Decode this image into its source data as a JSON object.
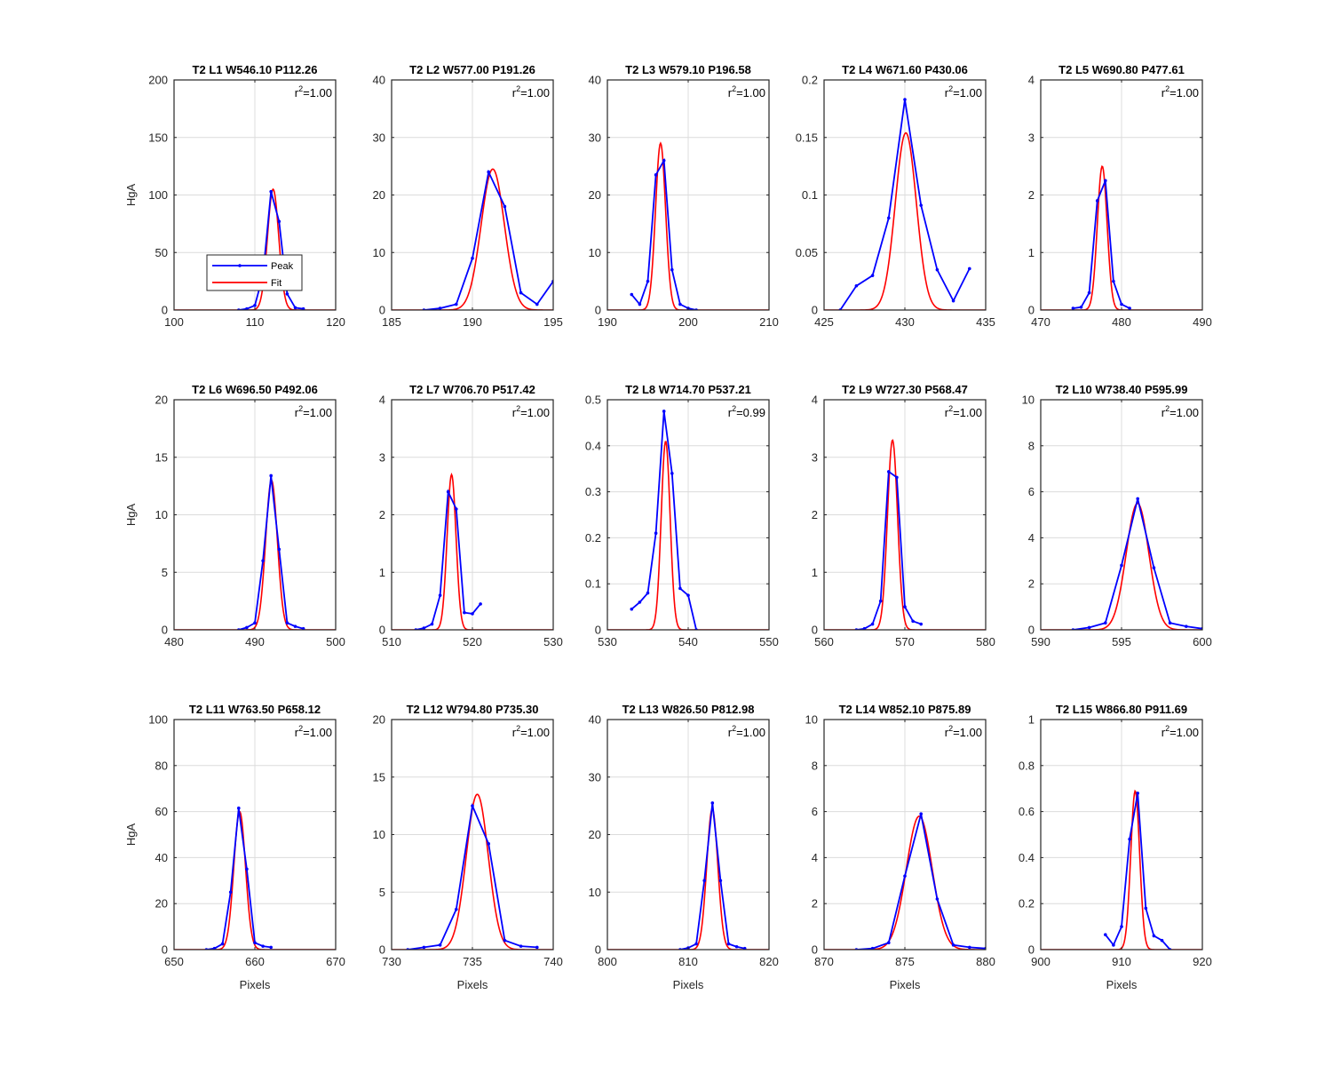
{
  "colors": {
    "peak": "#0000ff",
    "fit": "#ff0000",
    "grid": "#dcdcdc",
    "axis": "#262626"
  },
  "legend": {
    "entries": [
      "Peak",
      "Fit"
    ],
    "placement": "inside-lower-left of first panel"
  },
  "chart_data": [
    {
      "type": "line",
      "title": "T2 L1 W546.10 P112.26",
      "r2": "1.00",
      "center": 112.26,
      "xlim": [
        100,
        120
      ],
      "ylim": [
        0,
        200
      ],
      "xticks": [
        100,
        110,
        120
      ],
      "yticks": [
        0,
        50,
        100,
        150,
        200
      ],
      "ylabel": "HgA",
      "xlabel": "",
      "legend": true,
      "series": [
        {
          "name": "Peak",
          "x": [
            108,
            109,
            110,
            111,
            112,
            113,
            114,
            115,
            116
          ],
          "y": [
            0,
            1,
            4,
            30,
            103,
            77,
            14,
            2,
            1
          ]
        },
        {
          "name": "Fit",
          "amp": 105,
          "sigma": 0.7
        }
      ]
    },
    {
      "type": "line",
      "title": "T2 L2 W577.00 P191.26",
      "r2": "1.00",
      "center": 191.26,
      "xlim": [
        185,
        195
      ],
      "ylim": [
        0,
        40
      ],
      "xticks": [
        185,
        190,
        195
      ],
      "yticks": [
        0,
        10,
        20,
        30,
        40
      ],
      "ylabel": "",
      "xlabel": "",
      "legend": false,
      "series": [
        {
          "name": "Peak",
          "x": [
            187,
            188,
            189,
            190,
            191,
            192,
            193,
            194,
            195
          ],
          "y": [
            0,
            0.3,
            1,
            9,
            24,
            18,
            3,
            1,
            5
          ]
        },
        {
          "name": "Fit",
          "amp": 24.5,
          "sigma": 0.72
        }
      ]
    },
    {
      "type": "line",
      "title": "T2 L3 W579.10 P196.58",
      "r2": "1.00",
      "center": 196.58,
      "xlim": [
        190,
        210
      ],
      "ylim": [
        0,
        40
      ],
      "xticks": [
        190,
        200,
        210
      ],
      "yticks": [
        0,
        10,
        20,
        30,
        40
      ],
      "ylabel": "",
      "xlabel": "",
      "legend": false,
      "series": [
        {
          "name": "Peak",
          "x": [
            193,
            194,
            195,
            196,
            197,
            198,
            199,
            200,
            201
          ],
          "y": [
            2.7,
            1,
            5,
            23.5,
            26,
            7,
            1,
            0.3,
            0
          ]
        },
        {
          "name": "Fit",
          "amp": 29,
          "sigma": 0.62
        }
      ]
    },
    {
      "type": "line",
      "title": "T2 L4 W671.60 P430.06",
      "r2": "1.00",
      "center": 430.06,
      "xlim": [
        425,
        435
      ],
      "ylim": [
        0,
        0.2
      ],
      "xticks": [
        425,
        430,
        435
      ],
      "yticks": [
        0,
        0.05,
        0.1,
        0.15,
        0.2
      ],
      "ylabel": "",
      "xlabel": "",
      "legend": false,
      "series": [
        {
          "name": "Peak",
          "x": [
            426,
            427,
            428,
            429,
            430,
            431,
            432,
            433,
            434
          ],
          "y": [
            0,
            0.021,
            0.03,
            0.08,
            0.183,
            0.091,
            0.035,
            0.008,
            0.036
          ]
        },
        {
          "name": "Fit",
          "amp": 0.154,
          "sigma": 0.65
        }
      ]
    },
    {
      "type": "line",
      "title": "T2 L5 W690.80 P477.61",
      "r2": "1.00",
      "center": 477.61,
      "xlim": [
        470,
        490
      ],
      "ylim": [
        0,
        4
      ],
      "xticks": [
        470,
        480,
        490
      ],
      "yticks": [
        0,
        1,
        2,
        3,
        4
      ],
      "ylabel": "",
      "xlabel": "",
      "legend": false,
      "series": [
        {
          "name": "Peak",
          "x": [
            474,
            475,
            476,
            477,
            478,
            479,
            480,
            481
          ],
          "y": [
            0.03,
            0.05,
            0.3,
            1.9,
            2.25,
            0.5,
            0.1,
            0.03
          ]
        },
        {
          "name": "Fit",
          "amp": 2.5,
          "sigma": 0.6
        }
      ]
    },
    {
      "type": "line",
      "title": "T2 L6 W696.50 P492.06",
      "r2": "1.00",
      "center": 492.06,
      "xlim": [
        480,
        500
      ],
      "ylim": [
        0,
        20
      ],
      "xticks": [
        480,
        490,
        500
      ],
      "yticks": [
        0,
        5,
        10,
        15,
        20
      ],
      "ylabel": "HgA",
      "xlabel": "",
      "legend": false,
      "series": [
        {
          "name": "Peak",
          "x": [
            488,
            489,
            490,
            491,
            492,
            493,
            494,
            495,
            496
          ],
          "y": [
            0,
            0.2,
            0.6,
            6,
            13.4,
            7,
            0.6,
            0.3,
            0.1
          ]
        },
        {
          "name": "Fit",
          "amp": 13,
          "sigma": 0.72
        }
      ]
    },
    {
      "type": "line",
      "title": "T2 L7 W706.70 P517.42",
      "r2": "1.00",
      "center": 517.42,
      "xlim": [
        510,
        530
      ],
      "ylim": [
        0,
        4
      ],
      "xticks": [
        510,
        520,
        530
      ],
      "yticks": [
        0,
        1,
        2,
        3,
        4
      ],
      "ylabel": "",
      "xlabel": "",
      "legend": false,
      "series": [
        {
          "name": "Peak",
          "x": [
            513,
            514,
            515,
            516,
            517,
            518,
            519,
            520,
            521
          ],
          "y": [
            0,
            0.03,
            0.1,
            0.6,
            2.4,
            2.1,
            0.3,
            0.28,
            0.45
          ]
        },
        {
          "name": "Fit",
          "amp": 2.7,
          "sigma": 0.55
        }
      ]
    },
    {
      "type": "line",
      "title": "T2 L8 W714.70 P537.21",
      "r2": "0.99",
      "center": 537.21,
      "xlim": [
        530,
        550
      ],
      "ylim": [
        0,
        0.5
      ],
      "xticks": [
        530,
        540,
        550
      ],
      "yticks": [
        0,
        0.1,
        0.2,
        0.3,
        0.4,
        0.5
      ],
      "ylabel": "",
      "xlabel": "",
      "legend": false,
      "series": [
        {
          "name": "Peak",
          "x": [
            533,
            534,
            535,
            536,
            537,
            538,
            539,
            540,
            541
          ],
          "y": [
            0.045,
            0.06,
            0.08,
            0.21,
            0.475,
            0.34,
            0.09,
            0.075,
            0
          ]
        },
        {
          "name": "Fit",
          "amp": 0.41,
          "sigma": 0.55
        }
      ]
    },
    {
      "type": "line",
      "title": "T2 L9 W727.30 P568.47",
      "r2": "1.00",
      "center": 568.47,
      "xlim": [
        560,
        580
      ],
      "ylim": [
        0,
        4
      ],
      "xticks": [
        560,
        570,
        580
      ],
      "yticks": [
        0,
        1,
        2,
        3,
        4
      ],
      "ylabel": "",
      "xlabel": "",
      "legend": false,
      "series": [
        {
          "name": "Peak",
          "x": [
            564,
            565,
            566,
            567,
            568,
            569,
            570,
            571,
            572
          ],
          "y": [
            0,
            0.02,
            0.1,
            0.5,
            2.75,
            2.65,
            0.4,
            0.15,
            0.1
          ]
        },
        {
          "name": "Fit",
          "amp": 3.3,
          "sigma": 0.62
        }
      ]
    },
    {
      "type": "line",
      "title": "T2 L10 W738.40 P595.99",
      "r2": "1.00",
      "center": 595.99,
      "xlim": [
        590,
        600
      ],
      "ylim": [
        0,
        10
      ],
      "xticks": [
        590,
        595,
        600
      ],
      "yticks": [
        0,
        2,
        4,
        6,
        8,
        10
      ],
      "ylabel": "",
      "xlabel": "",
      "legend": false,
      "series": [
        {
          "name": "Peak",
          "x": [
            592,
            593,
            594,
            595,
            596,
            597,
            598,
            599,
            600
          ],
          "y": [
            0,
            0.1,
            0.3,
            2.8,
            5.7,
            2.7,
            0.3,
            0.15,
            0.05
          ]
        },
        {
          "name": "Fit",
          "amp": 5.5,
          "sigma": 0.7
        }
      ]
    },
    {
      "type": "line",
      "title": "T2 L11 W763.50 P658.12",
      "r2": "1.00",
      "center": 658.12,
      "xlim": [
        650,
        670
      ],
      "ylim": [
        0,
        100
      ],
      "xticks": [
        650,
        660,
        670
      ],
      "yticks": [
        0,
        20,
        40,
        60,
        80,
        100
      ],
      "ylabel": "HgA",
      "xlabel": "Pixels",
      "legend": false,
      "series": [
        {
          "name": "Peak",
          "x": [
            654,
            655,
            656,
            657,
            658,
            659,
            660,
            661,
            662
          ],
          "y": [
            0,
            0.5,
            2.5,
            25,
            61.5,
            35,
            3,
            1.5,
            1
          ]
        },
        {
          "name": "Fit",
          "amp": 60,
          "sigma": 0.72
        }
      ]
    },
    {
      "type": "line",
      "title": "T2 L12 W794.80 P735.30",
      "r2": "1.00",
      "center": 735.3,
      "xlim": [
        730,
        740
      ],
      "ylim": [
        0,
        20
      ],
      "xticks": [
        730,
        735,
        740
      ],
      "yticks": [
        0,
        5,
        10,
        15,
        20
      ],
      "ylabel": "",
      "xlabel": "Pixels",
      "legend": false,
      "series": [
        {
          "name": "Peak",
          "x": [
            731,
            732,
            733,
            734,
            735,
            736,
            737,
            738,
            739
          ],
          "y": [
            0,
            0.2,
            0.4,
            3.5,
            12.5,
            9.2,
            0.8,
            0.3,
            0.2
          ]
        },
        {
          "name": "Fit",
          "amp": 13.5,
          "sigma": 0.68
        }
      ]
    },
    {
      "type": "line",
      "title": "T2 L13 W826.50 P812.98",
      "r2": "1.00",
      "center": 812.98,
      "xlim": [
        800,
        820
      ],
      "ylim": [
        0,
        40
      ],
      "xticks": [
        800,
        810,
        820
      ],
      "yticks": [
        0,
        10,
        20,
        30,
        40
      ],
      "ylabel": "",
      "xlabel": "Pixels",
      "legend": false,
      "series": [
        {
          "name": "Peak",
          "x": [
            809,
            810,
            811,
            812,
            813,
            814,
            815,
            816,
            817
          ],
          "y": [
            0,
            0.3,
            1,
            12,
            25.5,
            12,
            1,
            0.5,
            0.2
          ]
        },
        {
          "name": "Fit",
          "amp": 24.5,
          "sigma": 0.68
        }
      ]
    },
    {
      "type": "line",
      "title": "T2 L14 W852.10 P875.89",
      "r2": "1.00",
      "center": 875.89,
      "xlim": [
        870,
        880
      ],
      "ylim": [
        0,
        10
      ],
      "xticks": [
        870,
        875,
        880
      ],
      "yticks": [
        0,
        2,
        4,
        6,
        8,
        10
      ],
      "ylabel": "",
      "xlabel": "Pixels",
      "legend": false,
      "series": [
        {
          "name": "Peak",
          "x": [
            872,
            873,
            874,
            875,
            876,
            877,
            878,
            879,
            880
          ],
          "y": [
            0,
            0.05,
            0.3,
            3.2,
            5.9,
            2.2,
            0.2,
            0.1,
            0.05
          ]
        },
        {
          "name": "Fit",
          "amp": 5.8,
          "sigma": 0.8
        }
      ]
    },
    {
      "type": "line",
      "title": "T2 L15 W866.80 P911.69",
      "r2": "1.00",
      "center": 911.69,
      "xlim": [
        900,
        920
      ],
      "ylim": [
        0,
        1
      ],
      "xticks": [
        900,
        910,
        920
      ],
      "yticks": [
        0,
        0.2,
        0.4,
        0.6,
        0.8,
        1
      ],
      "ylabel": "",
      "xlabel": "Pixels",
      "legend": false,
      "series": [
        {
          "name": "Peak",
          "x": [
            908,
            909,
            910,
            911,
            912,
            913,
            914,
            915,
            916
          ],
          "y": [
            0.065,
            0.02,
            0.1,
            0.48,
            0.68,
            0.18,
            0.06,
            0.04,
            0
          ]
        },
        {
          "name": "Fit",
          "amp": 0.69,
          "sigma": 0.55
        }
      ]
    }
  ]
}
